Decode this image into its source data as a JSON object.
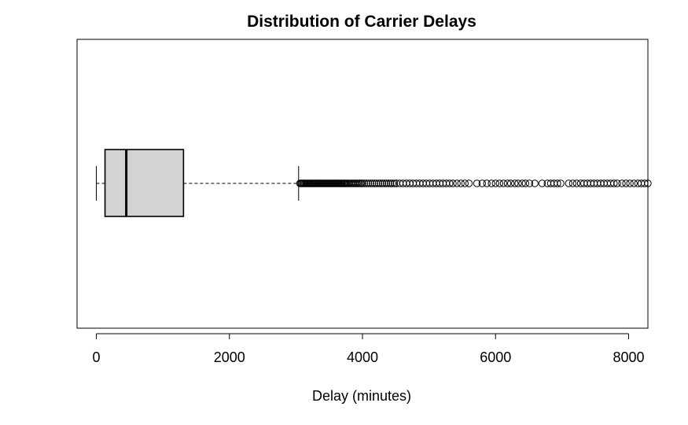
{
  "chart_data": {
    "type": "boxplot",
    "orientation": "horizontal",
    "title": "Distribution of Carrier Delays",
    "xlabel": "Delay (minutes)",
    "ylabel": "",
    "xlim": [
      -290,
      8290
    ],
    "xticks": [
      {
        "value": 0,
        "label": "0"
      },
      {
        "value": 2000,
        "label": "2000"
      },
      {
        "value": 4000,
        "label": "4000"
      },
      {
        "value": 6000,
        "label": "6000"
      },
      {
        "value": 8000,
        "label": "8000"
      }
    ],
    "grid": false,
    "box": {
      "whisker_low": 0,
      "q1": 130,
      "median": 450,
      "q3": 1310,
      "whisker_high": 3040,
      "fill": "#d3d3d3"
    },
    "outliers": [
      3060,
      3075,
      3090,
      3105,
      3120,
      3135,
      3150,
      3165,
      3180,
      3195,
      3210,
      3225,
      3240,
      3255,
      3270,
      3285,
      3300,
      3315,
      3330,
      3345,
      3360,
      3375,
      3390,
      3405,
      3420,
      3435,
      3450,
      3465,
      3480,
      3495,
      3510,
      3525,
      3540,
      3555,
      3570,
      3585,
      3600,
      3615,
      3630,
      3645,
      3660,
      3675,
      3690,
      3705,
      3720,
      3735,
      3750,
      3765,
      3780,
      3800,
      3820,
      3840,
      3860,
      3880,
      3900,
      3920,
      3940,
      3960,
      3980,
      4000,
      4030,
      4060,
      4090,
      4120,
      4150,
      4180,
      4210,
      4240,
      4270,
      4300,
      4330,
      4360,
      4390,
      4420,
      4450,
      4480,
      4510,
      4560,
      4610,
      4660,
      4710,
      4760,
      4810,
      4860,
      4910,
      4960,
      5010,
      5060,
      5110,
      5160,
      5210,
      5260,
      5310,
      5360,
      5420,
      5480,
      5540,
      5600,
      5720,
      5800,
      5870,
      5940,
      6000,
      6060,
      6120,
      6180,
      6230,
      6290,
      6340,
      6400,
      6450,
      6510,
      6590,
      6700,
      6780,
      6830,
      6880,
      6930,
      6980,
      7100,
      7160,
      7220,
      7280,
      7330,
      7380,
      7430,
      7480,
      7530,
      7580,
      7630,
      7680,
      7730,
      7780,
      7830,
      7900,
      7960,
      8020,
      8080,
      8140,
      8190,
      8240,
      8290
    ]
  }
}
